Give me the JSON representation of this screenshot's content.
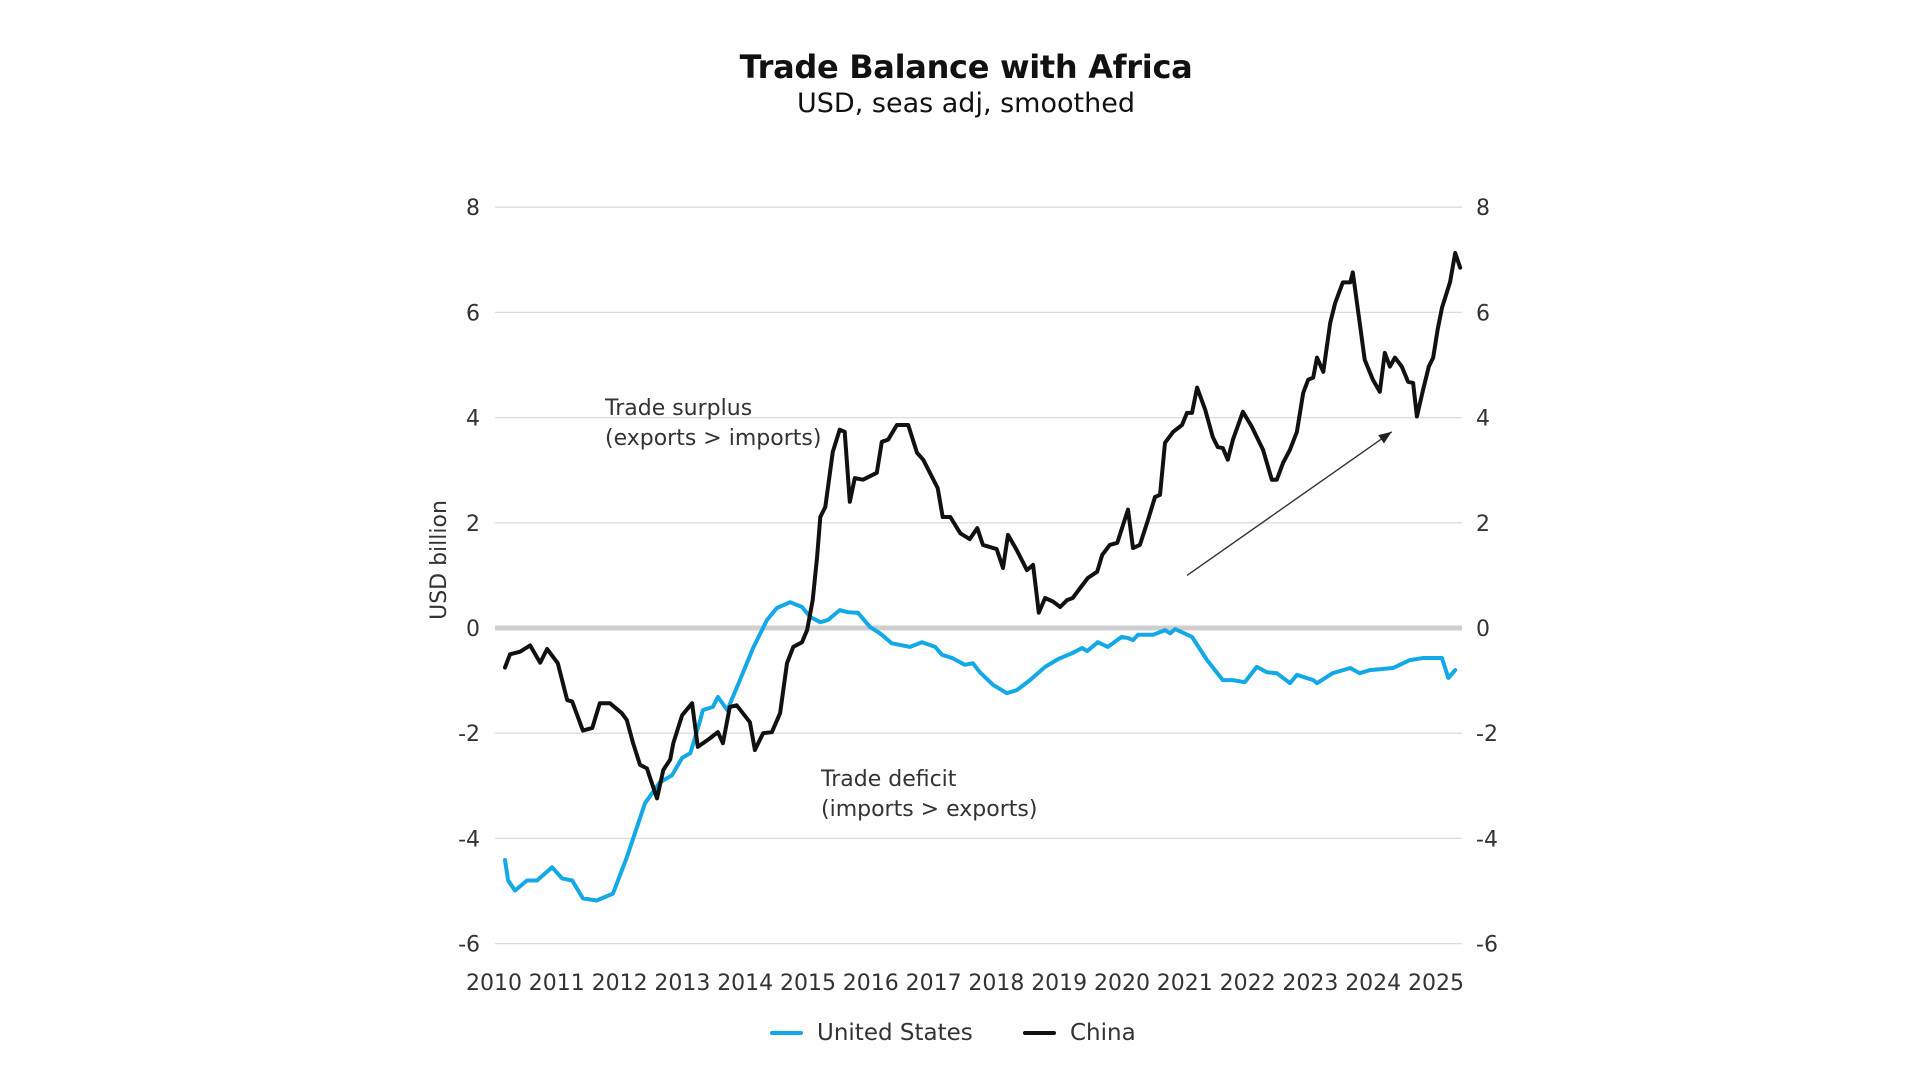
{
  "chart_data": {
    "type": "line",
    "title": "Trade Balance with Africa",
    "subtitle": "USD, seas adj, smoothed",
    "xlabel": "",
    "ylabel": "USD billion",
    "xlim": [
      2010,
      2025.5
    ],
    "ylim": [
      -6,
      8
    ],
    "yticks": [
      8,
      6,
      4,
      2,
      0,
      -2,
      -4,
      -6
    ],
    "ytick_labels": [
      "8",
      "6",
      "4",
      "2",
      "0",
      "-2",
      "-4",
      "-6"
    ],
    "xtick_labels": [
      "2010",
      "2011",
      "2012",
      "2013",
      "2014",
      "2015",
      "2016",
      "2017",
      "2018",
      "2019",
      "2020",
      "2021",
      "2022",
      "2023",
      "2024",
      "2025"
    ],
    "secondary_y_axis": true,
    "grid": "horizontal",
    "zero_line_emphasized": true,
    "legend_placement": "bottom-center",
    "annotations": [
      {
        "id": "surplus",
        "lines": [
          "Trade surplus",
          "(exports > imports)"
        ],
        "x": 2011.5,
        "y": 4
      },
      {
        "id": "deficit",
        "lines": [
          "Trade deficit",
          "(imports > exports)"
        ],
        "x": 2014.9,
        "y": -3.2
      }
    ],
    "arrow": {
      "from": [
        2020.86,
        1.0
      ],
      "to": [
        2024.12,
        3.73
      ]
    },
    "series": [
      {
        "name": "United States",
        "color": "#12a9e6",
        "points": [
          [
            2010.0,
            -4.41
          ],
          [
            2010.05,
            -4.8
          ],
          [
            2010.16,
            -4.99
          ],
          [
            2010.35,
            -4.8
          ],
          [
            2010.51,
            -4.8
          ],
          [
            2010.75,
            -4.55
          ],
          [
            2010.91,
            -4.76
          ],
          [
            2011.07,
            -4.8
          ],
          [
            2011.24,
            -5.14
          ],
          [
            2011.46,
            -5.18
          ],
          [
            2011.72,
            -5.05
          ],
          [
            2011.94,
            -4.36
          ],
          [
            2012.1,
            -3.79
          ],
          [
            2012.23,
            -3.33
          ],
          [
            2012.47,
            -2.93
          ],
          [
            2012.66,
            -2.8
          ],
          [
            2012.82,
            -2.47
          ],
          [
            2012.95,
            -2.38
          ],
          [
            2013.11,
            -1.75
          ],
          [
            2013.15,
            -1.56
          ],
          [
            2013.31,
            -1.5
          ],
          [
            2013.39,
            -1.31
          ],
          [
            2013.54,
            -1.56
          ],
          [
            2013.74,
            -0.99
          ],
          [
            2013.95,
            -0.38
          ],
          [
            2014.17,
            0.15
          ],
          [
            2014.33,
            0.38
          ],
          [
            2014.54,
            0.49
          ],
          [
            2014.73,
            0.4
          ],
          [
            2014.86,
            0.21
          ],
          [
            2015.02,
            0.11
          ],
          [
            2015.14,
            0.15
          ],
          [
            2015.33,
            0.34
          ],
          [
            2015.46,
            0.3
          ],
          [
            2015.62,
            0.29
          ],
          [
            2015.81,
            0.02
          ],
          [
            2015.97,
            -0.1
          ],
          [
            2016.16,
            -0.29
          ],
          [
            2016.45,
            -0.36
          ],
          [
            2016.64,
            -0.27
          ],
          [
            2016.85,
            -0.36
          ],
          [
            2016.96,
            -0.51
          ],
          [
            2017.12,
            -0.57
          ],
          [
            2017.32,
            -0.7
          ],
          [
            2017.45,
            -0.67
          ],
          [
            2017.56,
            -0.84
          ],
          [
            2017.77,
            -1.08
          ],
          [
            2017.99,
            -1.24
          ],
          [
            2018.15,
            -1.18
          ],
          [
            2018.36,
            -0.99
          ],
          [
            2018.6,
            -0.74
          ],
          [
            2018.81,
            -0.59
          ],
          [
            2019.03,
            -0.48
          ],
          [
            2019.19,
            -0.38
          ],
          [
            2019.27,
            -0.44
          ],
          [
            2019.44,
            -0.27
          ],
          [
            2019.6,
            -0.36
          ],
          [
            2019.82,
            -0.17
          ],
          [
            2019.92,
            -0.19
          ],
          [
            2020.0,
            -0.23
          ],
          [
            2020.08,
            -0.13
          ],
          [
            2020.32,
            -0.13
          ],
          [
            2020.51,
            -0.04
          ],
          [
            2020.59,
            -0.1
          ],
          [
            2020.67,
            -0.02
          ],
          [
            2020.94,
            -0.17
          ],
          [
            2021.18,
            -0.61
          ],
          [
            2021.43,
            -0.99
          ],
          [
            2021.59,
            -0.99
          ],
          [
            2021.78,
            -1.03
          ],
          [
            2021.97,
            -0.74
          ],
          [
            2022.13,
            -0.84
          ],
          [
            2022.29,
            -0.86
          ],
          [
            2022.5,
            -1.05
          ],
          [
            2022.61,
            -0.89
          ],
          [
            2022.87,
            -0.99
          ],
          [
            2022.93,
            -1.05
          ],
          [
            2023.18,
            -0.86
          ],
          [
            2023.46,
            -0.76
          ],
          [
            2023.61,
            -0.86
          ],
          [
            2023.77,
            -0.8
          ],
          [
            2024.14,
            -0.76
          ],
          [
            2024.41,
            -0.61
          ],
          [
            2024.62,
            -0.57
          ],
          [
            2024.92,
            -0.57
          ],
          [
            2025.02,
            -0.95
          ],
          [
            2025.13,
            -0.8
          ]
        ]
      },
      {
        "name": "China",
        "color": "#111111",
        "points": [
          [
            2010.0,
            -0.75
          ],
          [
            2010.08,
            -0.5
          ],
          [
            2010.24,
            -0.45
          ],
          [
            2010.4,
            -0.33
          ],
          [
            2010.56,
            -0.66
          ],
          [
            2010.67,
            -0.4
          ],
          [
            2010.84,
            -0.67
          ],
          [
            2010.99,
            -1.37
          ],
          [
            2011.07,
            -1.4
          ],
          [
            2011.24,
            -1.95
          ],
          [
            2011.39,
            -1.9
          ],
          [
            2011.51,
            -1.43
          ],
          [
            2011.67,
            -1.43
          ],
          [
            2011.86,
            -1.62
          ],
          [
            2011.94,
            -1.75
          ],
          [
            2012.04,
            -2.19
          ],
          [
            2012.15,
            -2.6
          ],
          [
            2012.26,
            -2.67
          ],
          [
            2012.42,
            -3.24
          ],
          [
            2012.52,
            -2.7
          ],
          [
            2012.63,
            -2.5
          ],
          [
            2012.68,
            -2.19
          ],
          [
            2012.82,
            -1.66
          ],
          [
            2012.98,
            -1.43
          ],
          [
            2013.07,
            -2.26
          ],
          [
            2013.26,
            -2.1
          ],
          [
            2013.39,
            -1.98
          ],
          [
            2013.47,
            -2.19
          ],
          [
            2013.58,
            -1.5
          ],
          [
            2013.69,
            -1.47
          ],
          [
            2013.9,
            -1.79
          ],
          [
            2013.98,
            -2.32
          ],
          [
            2014.11,
            -2.0
          ],
          [
            2014.25,
            -1.98
          ],
          [
            2014.38,
            -1.62
          ],
          [
            2014.49,
            -0.67
          ],
          [
            2014.59,
            -0.36
          ],
          [
            2014.73,
            -0.27
          ],
          [
            2014.81,
            -0.04
          ],
          [
            2014.9,
            0.53
          ],
          [
            2014.97,
            1.35
          ],
          [
            2015.02,
            2.11
          ],
          [
            2015.1,
            2.3
          ],
          [
            2015.22,
            3.35
          ],
          [
            2015.33,
            3.77
          ],
          [
            2015.41,
            3.73
          ],
          [
            2015.49,
            2.4
          ],
          [
            2015.57,
            2.85
          ],
          [
            2015.7,
            2.82
          ],
          [
            2015.92,
            2.95
          ],
          [
            2016.0,
            3.54
          ],
          [
            2016.1,
            3.58
          ],
          [
            2016.24,
            3.86
          ],
          [
            2016.42,
            3.86
          ],
          [
            2016.56,
            3.33
          ],
          [
            2016.66,
            3.2
          ],
          [
            2016.89,
            2.66
          ],
          [
            2016.97,
            2.11
          ],
          [
            2017.09,
            2.11
          ],
          [
            2017.25,
            1.8
          ],
          [
            2017.4,
            1.69
          ],
          [
            2017.52,
            1.9
          ],
          [
            2017.61,
            1.58
          ],
          [
            2017.83,
            1.5
          ],
          [
            2017.93,
            1.14
          ],
          [
            2018.01,
            1.77
          ],
          [
            2018.15,
            1.48
          ],
          [
            2018.31,
            1.1
          ],
          [
            2018.41,
            1.2
          ],
          [
            2018.5,
            0.29
          ],
          [
            2018.6,
            0.57
          ],
          [
            2018.73,
            0.5
          ],
          [
            2018.84,
            0.4
          ],
          [
            2018.95,
            0.53
          ],
          [
            2019.04,
            0.57
          ],
          [
            2019.16,
            0.76
          ],
          [
            2019.28,
            0.95
          ],
          [
            2019.43,
            1.07
          ],
          [
            2019.51,
            1.39
          ],
          [
            2019.63,
            1.58
          ],
          [
            2019.75,
            1.62
          ],
          [
            2019.92,
            2.25
          ],
          [
            2020.0,
            1.52
          ],
          [
            2020.11,
            1.58
          ],
          [
            2020.24,
            2.06
          ],
          [
            2020.35,
            2.49
          ],
          [
            2020.43,
            2.53
          ],
          [
            2020.51,
            3.52
          ],
          [
            2020.64,
            3.73
          ],
          [
            2020.78,
            3.86
          ],
          [
            2020.86,
            4.09
          ],
          [
            2020.94,
            4.09
          ],
          [
            2021.02,
            4.57
          ],
          [
            2021.15,
            4.15
          ],
          [
            2021.27,
            3.63
          ],
          [
            2021.35,
            3.44
          ],
          [
            2021.43,
            3.42
          ],
          [
            2021.51,
            3.2
          ],
          [
            2021.59,
            3.58
          ],
          [
            2021.75,
            4.11
          ],
          [
            2021.89,
            3.83
          ],
          [
            2022.07,
            3.39
          ],
          [
            2022.21,
            2.82
          ],
          [
            2022.29,
            2.82
          ],
          [
            2022.39,
            3.14
          ],
          [
            2022.5,
            3.39
          ],
          [
            2022.61,
            3.73
          ],
          [
            2022.71,
            4.47
          ],
          [
            2022.79,
            4.72
          ],
          [
            2022.87,
            4.76
          ],
          [
            2022.93,
            5.14
          ],
          [
            2023.03,
            4.87
          ],
          [
            2023.14,
            5.8
          ],
          [
            2023.22,
            6.18
          ],
          [
            2023.34,
            6.57
          ],
          [
            2023.46,
            6.57
          ],
          [
            2023.5,
            6.76
          ],
          [
            2023.61,
            5.8
          ],
          [
            2023.69,
            5.1
          ],
          [
            2023.82,
            4.72
          ],
          [
            2023.93,
            4.49
          ],
          [
            2024.01,
            5.23
          ],
          [
            2024.09,
            4.97
          ],
          [
            2024.17,
            5.14
          ],
          [
            2024.28,
            4.97
          ],
          [
            2024.38,
            4.68
          ],
          [
            2024.46,
            4.66
          ],
          [
            2024.52,
            4.02
          ],
          [
            2024.62,
            4.53
          ],
          [
            2024.71,
            4.97
          ],
          [
            2024.78,
            5.14
          ],
          [
            2024.85,
            5.67
          ],
          [
            2024.92,
            6.09
          ],
          [
            2025.0,
            6.39
          ],
          [
            2025.05,
            6.58
          ],
          [
            2025.13,
            7.13
          ],
          [
            2025.21,
            6.85
          ]
        ]
      }
    ]
  },
  "legend": [
    {
      "label": "United States",
      "color": "#12a9e6"
    },
    {
      "label": "China",
      "color": "#111111"
    }
  ]
}
